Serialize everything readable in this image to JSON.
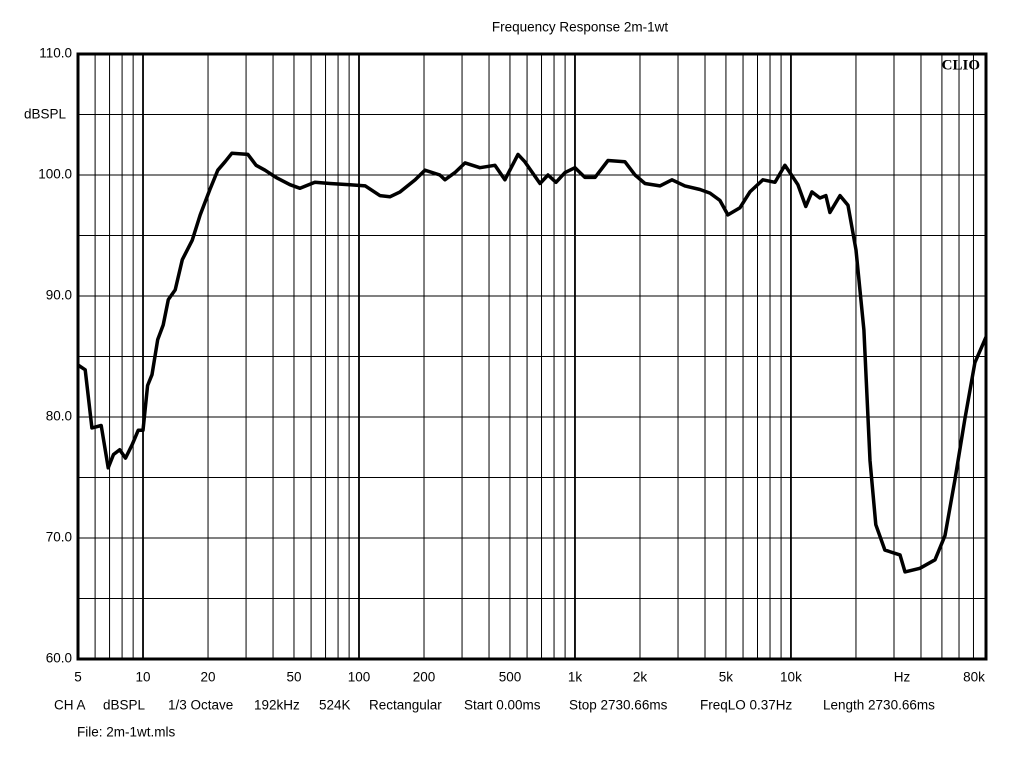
{
  "chart_data": {
    "type": "line",
    "title": "Frequency Response 2m-1wt",
    "y_unit": "dBSPL",
    "x_unit": "Hz",
    "brand": "CLIO",
    "log_x": true,
    "grid": true,
    "color": "#000000",
    "xlim": [
      5,
      80000
    ],
    "ylim": [
      60,
      110
    ],
    "xticks": [
      5,
      10,
      20,
      50,
      100,
      200,
      500,
      {
        "value": 1000,
        "label": "1k"
      },
      {
        "value": 2000,
        "label": "2k"
      },
      {
        "value": 5000,
        "label": "5k"
      },
      {
        "value": 10000,
        "label": "10k"
      },
      {
        "value": 80000,
        "label": "80k"
      }
    ],
    "xticks_minor": [
      6,
      7,
      8,
      9,
      30,
      40,
      60,
      70,
      80,
      90,
      300,
      400,
      600,
      700,
      800,
      900,
      3000,
      4000,
      6000,
      7000,
      8000,
      9000,
      20000,
      30000,
      40000,
      50000,
      60000,
      70000
    ],
    "yticks": [
      {
        "value": 60,
        "label": "60.0"
      },
      {
        "value": 70,
        "label": "70.0"
      },
      {
        "value": 80,
        "label": "80.0"
      },
      {
        "value": 90,
        "label": "90.0"
      },
      {
        "value": 100,
        "label": "100.0"
      },
      {
        "value": 110,
        "label": "110.0"
      }
    ],
    "yticks_minor": [
      65,
      75,
      85,
      95,
      105
    ],
    "x": [
      5,
      5.4,
      5.8,
      6.4,
      6.9,
      7.3,
      7.8,
      8.3,
      8.9,
      9.5,
      10,
      10.5,
      11,
      11.7,
      12.4,
      13.1,
      14.1,
      15.2,
      16.9,
      18.4,
      20.4,
      22.2,
      24,
      25.8,
      30.6,
      33.4,
      36.7,
      41.3,
      47.9,
      53.3,
      62.5,
      73.4,
      90.8,
      107,
      125,
      139,
      155,
      182,
      202,
      237,
      250,
      278,
      310,
      363,
      426,
      474,
      545,
      586,
      689,
      750,
      817,
      899,
      1000,
      1112,
      1238,
      1422,
      1703,
      1896,
      2110,
      2473,
      2812,
      3228,
      3792,
      4217,
      4690,
      5107,
      5807,
      6457,
      7414,
      8434,
      9378,
      9885,
      10770,
      11720,
      12500,
      13615,
      14520,
      15145,
      16865,
      18365,
      20000,
      21775,
      23225,
      24715,
      27225,
      31985,
      33725,
      39535,
      46450,
      51650,
      57450,
      63850,
      71100,
      80000
    ],
    "values": [
      84.3,
      83.9,
      79.1,
      79.3,
      75.8,
      76.9,
      77.3,
      76.6,
      77.7,
      78.9,
      78.9,
      82.6,
      83.5,
      86.4,
      87.6,
      89.7,
      90.5,
      93.0,
      94.6,
      96.7,
      98.8,
      100.4,
      101.1,
      101.8,
      101.7,
      100.8,
      100.4,
      99.8,
      99.2,
      98.9,
      99.4,
      99.3,
      99.2,
      99.1,
      98.3,
      98.2,
      98.6,
      99.6,
      100.4,
      100.0,
      99.6,
      100.2,
      101.0,
      100.6,
      100.8,
      99.6,
      101.7,
      101.1,
      99.3,
      100.0,
      99.4,
      100.2,
      100.6,
      99.8,
      99.8,
      101.2,
      101.1,
      100.0,
      99.3,
      99.1,
      99.6,
      99.1,
      98.8,
      98.5,
      97.9,
      96.7,
      97.3,
      98.6,
      99.6,
      99.4,
      100.8,
      100.2,
      99.2,
      97.4,
      98.6,
      98.1,
      98.3,
      96.9,
      98.3,
      97.5,
      93.8,
      87.2,
      76.4,
      71.1,
      69.0,
      68.6,
      67.2,
      67.5,
      68.2,
      70.2,
      74.8,
      79.8,
      84.5,
      86.6
    ]
  },
  "footer": {
    "items": [
      "CH A",
      "dBSPL",
      "1/3 Octave",
      "192kHz",
      "524K",
      "Rectangular",
      "Start 0.00ms",
      "Stop 2730.66ms",
      "FreqLO 0.37Hz",
      "Length 2730.66ms"
    ],
    "file": "File: 2m-1wt.mls"
  }
}
